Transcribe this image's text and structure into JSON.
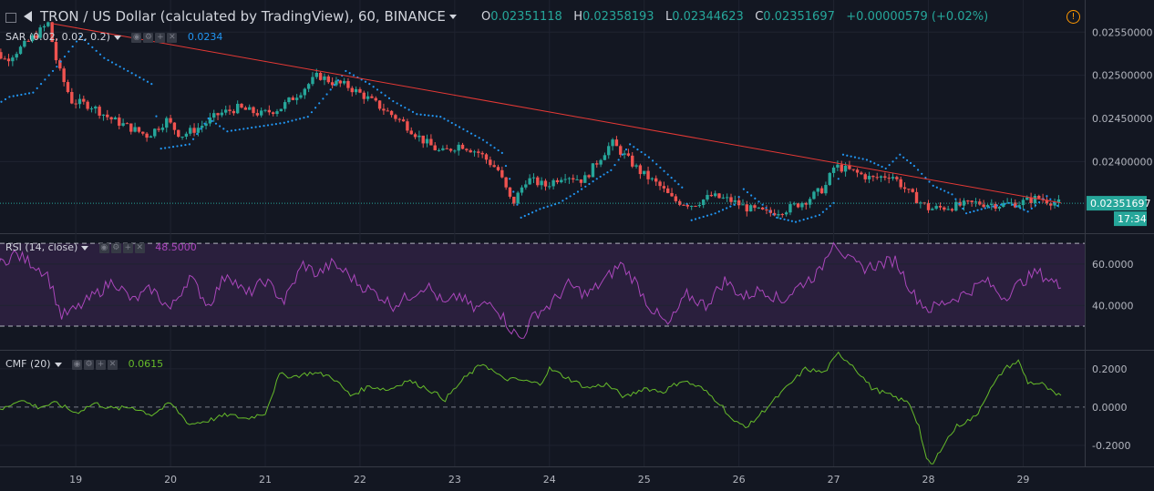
{
  "header": {
    "symbol": "TRON / US Dollar (calculated by TradingView), 60, BINANCE",
    "ohlc": [
      {
        "k": "O",
        "v": "0.02351118"
      },
      {
        "k": "H",
        "v": "0.02358193"
      },
      {
        "k": "L",
        "v": "0.02344623"
      },
      {
        "k": "C",
        "v": "0.02351697"
      }
    ],
    "change": "+0.00000579 (+0.02%)",
    "alert_icon": "alert-icon"
  },
  "indicators": {
    "sar": {
      "label": "SAR (0.02, 0.02, 0.2)",
      "value": "0.0234"
    },
    "rsi": {
      "label": "RSI (14, close)",
      "value": "48.5000"
    },
    "cmf": {
      "label": "CMF (20)",
      "value": "0.0615"
    }
  },
  "price_badge": {
    "price": "0.02351697",
    "countdown": "17:34"
  },
  "colors": {
    "up": "#26a69a",
    "down": "#ef5350",
    "sar": "#2196f3",
    "rsi": "#ab47bc",
    "cmf": "#66bb2a",
    "trend": "#e53935",
    "bg": "#131722"
  },
  "chart_data": [
    {
      "type": "candlestick",
      "title": "TRON / US Dollar (calculated by TradingView), 60, BINANCE",
      "x_ticks": [
        "19",
        "20",
        "21",
        "22",
        "23",
        "24",
        "25",
        "26",
        "27",
        "28",
        "29"
      ],
      "y_ticks": [
        "0.02550000",
        "0.02500000",
        "0.02450000",
        "0.02400000",
        "0.02351697"
      ],
      "ylim": [
        0.02318,
        0.02582
      ],
      "trendline": [
        {
          "x": 18.75,
          "y": 0.0256
        },
        {
          "x": 29.4,
          "y": 0.02352
        }
      ],
      "close_path": [
        [
          18.0,
          0.02505
        ],
        [
          18.15,
          0.0253
        ],
        [
          18.3,
          0.02518
        ],
        [
          18.5,
          0.02535
        ],
        [
          18.75,
          0.0256
        ],
        [
          18.85,
          0.0251
        ],
        [
          19.0,
          0.0247
        ],
        [
          19.2,
          0.02465
        ],
        [
          19.4,
          0.0245
        ],
        [
          19.6,
          0.0244
        ],
        [
          19.8,
          0.0243
        ],
        [
          20.0,
          0.02448
        ],
        [
          20.15,
          0.0243
        ],
        [
          20.35,
          0.0244
        ],
        [
          20.55,
          0.02455
        ],
        [
          20.75,
          0.02462
        ],
        [
          21.0,
          0.02455
        ],
        [
          21.2,
          0.02462
        ],
        [
          21.4,
          0.0248
        ],
        [
          21.6,
          0.025
        ],
        [
          21.75,
          0.02492
        ],
        [
          21.9,
          0.02488
        ],
        [
          22.1,
          0.02475
        ],
        [
          22.3,
          0.0246
        ],
        [
          22.5,
          0.02445
        ],
        [
          22.7,
          0.02425
        ],
        [
          22.9,
          0.0241
        ],
        [
          23.1,
          0.0242
        ],
        [
          23.3,
          0.0241
        ],
        [
          23.5,
          0.0239
        ],
        [
          23.65,
          0.0235
        ],
        [
          23.8,
          0.0238
        ],
        [
          24.0,
          0.02372
        ],
        [
          24.2,
          0.02385
        ],
        [
          24.4,
          0.02378
        ],
        [
          24.6,
          0.02408
        ],
        [
          24.7,
          0.02422
        ],
        [
          24.85,
          0.02405
        ],
        [
          25.0,
          0.02388
        ],
        [
          25.2,
          0.02372
        ],
        [
          25.35,
          0.02355
        ],
        [
          25.55,
          0.0235
        ],
        [
          25.75,
          0.0236
        ],
        [
          25.95,
          0.02355
        ],
        [
          26.15,
          0.02345
        ],
        [
          26.35,
          0.0234
        ],
        [
          26.55,
          0.02345
        ],
        [
          26.75,
          0.02355
        ],
        [
          26.95,
          0.0237
        ],
        [
          27.05,
          0.02395
        ],
        [
          27.25,
          0.02388
        ],
        [
          27.45,
          0.0238
        ],
        [
          27.65,
          0.02385
        ],
        [
          27.85,
          0.02362
        ],
        [
          28.05,
          0.02345
        ],
        [
          28.3,
          0.02348
        ],
        [
          28.55,
          0.02352
        ],
        [
          28.8,
          0.0235
        ],
        [
          29.0,
          0.02352
        ],
        [
          29.2,
          0.02358
        ],
        [
          29.4,
          0.02351697
        ]
      ],
      "sar_dots": [
        [
          18.0,
          0.02455
        ],
        [
          18.3,
          0.02475
        ],
        [
          18.55,
          0.0248
        ],
        [
          18.8,
          0.0251
        ],
        [
          19.05,
          0.02545
        ],
        [
          19.3,
          0.0252
        ],
        [
          19.55,
          0.02505
        ],
        [
          19.8,
          0.0249
        ],
        [
          19.9,
          0.02415
        ],
        [
          20.2,
          0.0242
        ],
        [
          20.4,
          0.0245
        ],
        [
          20.6,
          0.02435
        ],
        [
          20.9,
          0.0244
        ],
        [
          21.2,
          0.02445
        ],
        [
          21.45,
          0.02452
        ],
        [
          21.65,
          0.02478
        ],
        [
          21.85,
          0.02505
        ],
        [
          22.1,
          0.0249
        ],
        [
          22.35,
          0.0247
        ],
        [
          22.6,
          0.02455
        ],
        [
          22.85,
          0.02452
        ],
        [
          23.05,
          0.0244
        ],
        [
          23.3,
          0.02425
        ],
        [
          23.5,
          0.0241
        ],
        [
          23.7,
          0.02335
        ],
        [
          23.9,
          0.02345
        ],
        [
          24.1,
          0.02352
        ],
        [
          24.3,
          0.02365
        ],
        [
          24.5,
          0.0238
        ],
        [
          24.65,
          0.0239
        ],
        [
          24.85,
          0.0242
        ],
        [
          25.05,
          0.02405
        ],
        [
          25.25,
          0.02385
        ],
        [
          25.4,
          0.0237
        ],
        [
          25.5,
          0.02332
        ],
        [
          25.75,
          0.0234
        ],
        [
          25.95,
          0.0235
        ],
        [
          26.05,
          0.02368
        ],
        [
          26.25,
          0.0235
        ],
        [
          26.4,
          0.02335
        ],
        [
          26.6,
          0.0233
        ],
        [
          26.85,
          0.02338
        ],
        [
          27.0,
          0.02352
        ],
        [
          27.1,
          0.02408
        ],
        [
          27.35,
          0.02402
        ],
        [
          27.55,
          0.02392
        ],
        [
          27.7,
          0.02408
        ],
        [
          27.85,
          0.02395
        ],
        [
          28.05,
          0.02372
        ],
        [
          28.25,
          0.02362
        ],
        [
          28.4,
          0.0234
        ],
        [
          28.6,
          0.02346
        ],
        [
          28.85,
          0.02352
        ],
        [
          29.05,
          0.02342
        ],
        [
          29.25,
          0.0236
        ],
        [
          29.4,
          0.02345
        ]
      ]
    },
    {
      "type": "line",
      "title": "RSI (14, close)",
      "y_ticks": [
        "60.0000",
        "40.0000"
      ],
      "ylim": [
        19,
        74
      ],
      "band": [
        30,
        70
      ],
      "series": [
        {
          "name": "RSI (14, close)",
          "points": [
            [
              18.0,
              61
            ],
            [
              18.15,
              58
            ],
            [
              18.35,
              65
            ],
            [
              18.55,
              60
            ],
            [
              18.7,
              55
            ],
            [
              18.85,
              35
            ],
            [
              19.0,
              38
            ],
            [
              19.2,
              45
            ],
            [
              19.4,
              52
            ],
            [
              19.6,
              42
            ],
            [
              19.8,
              48
            ],
            [
              20.0,
              38
            ],
            [
              20.2,
              54
            ],
            [
              20.4,
              40
            ],
            [
              20.6,
              56
            ],
            [
              20.8,
              45
            ],
            [
              21.0,
              52
            ],
            [
              21.2,
              42
            ],
            [
              21.4,
              60
            ],
            [
              21.55,
              55
            ],
            [
              21.7,
              60
            ],
            [
              21.85,
              56
            ],
            [
              22.0,
              50
            ],
            [
              22.2,
              45
            ],
            [
              22.35,
              40
            ],
            [
              22.5,
              44
            ],
            [
              22.7,
              50
            ],
            [
              22.9,
              40
            ],
            [
              23.05,
              45
            ],
            [
              23.2,
              38
            ],
            [
              23.4,
              42
            ],
            [
              23.6,
              28
            ],
            [
              23.7,
              24
            ],
            [
              23.85,
              36
            ],
            [
              24.0,
              40
            ],
            [
              24.2,
              50
            ],
            [
              24.4,
              45
            ],
            [
              24.6,
              53
            ],
            [
              24.75,
              60
            ],
            [
              24.9,
              52
            ],
            [
              25.05,
              40
            ],
            [
              25.25,
              30
            ],
            [
              25.45,
              45
            ],
            [
              25.65,
              40
            ],
            [
              25.85,
              52
            ],
            [
              26.05,
              44
            ],
            [
              26.25,
              48
            ],
            [
              26.45,
              42
            ],
            [
              26.65,
              50
            ],
            [
              26.85,
              56
            ],
            [
              27.0,
              72
            ],
            [
              27.15,
              62
            ],
            [
              27.3,
              58
            ],
            [
              27.5,
              60
            ],
            [
              27.65,
              62
            ],
            [
              27.85,
              45
            ],
            [
              28.0,
              38
            ],
            [
              28.2,
              42
            ],
            [
              28.4,
              46
            ],
            [
              28.6,
              52
            ],
            [
              28.8,
              44
            ],
            [
              29.0,
              52
            ],
            [
              29.15,
              56
            ],
            [
              29.3,
              52
            ],
            [
              29.4,
              48.5
            ]
          ]
        }
      ]
    },
    {
      "type": "line",
      "title": "CMF (20)",
      "y_ticks": [
        "0.2000",
        "0.0000",
        "-0.2000"
      ],
      "ylim": [
        -0.31,
        0.29
      ],
      "series": [
        {
          "name": "CMF (20)",
          "points": [
            [
              18.0,
              0.0
            ],
            [
              18.2,
              -0.02
            ],
            [
              18.4,
              0.04
            ],
            [
              18.6,
              0.0
            ],
            [
              18.8,
              0.02
            ],
            [
              19.0,
              -0.03
            ],
            [
              19.2,
              0.02
            ],
            [
              19.4,
              -0.01
            ],
            [
              19.6,
              0.0
            ],
            [
              19.8,
              -0.04
            ],
            [
              20.0,
              0.02
            ],
            [
              20.2,
              -0.09
            ],
            [
              20.4,
              -0.07
            ],
            [
              20.6,
              -0.04
            ],
            [
              20.8,
              -0.06
            ],
            [
              21.0,
              -0.03
            ],
            [
              21.15,
              0.17
            ],
            [
              21.3,
              0.16
            ],
            [
              21.5,
              0.18
            ],
            [
              21.7,
              0.16
            ],
            [
              21.9,
              0.06
            ],
            [
              22.1,
              0.11
            ],
            [
              22.3,
              0.09
            ],
            [
              22.5,
              0.14
            ],
            [
              22.7,
              0.1
            ],
            [
              22.9,
              0.04
            ],
            [
              23.1,
              0.15
            ],
            [
              23.3,
              0.23
            ],
            [
              23.5,
              0.15
            ],
            [
              23.7,
              0.14
            ],
            [
              23.9,
              0.12
            ],
            [
              24.0,
              0.2
            ],
            [
              24.2,
              0.15
            ],
            [
              24.4,
              0.1
            ],
            [
              24.6,
              0.12
            ],
            [
              24.8,
              0.05
            ],
            [
              25.0,
              0.1
            ],
            [
              25.2,
              0.08
            ],
            [
              25.4,
              0.14
            ],
            [
              25.6,
              0.1
            ],
            [
              25.8,
              0.02
            ],
            [
              25.95,
              -0.08
            ],
            [
              26.1,
              -0.1
            ],
            [
              26.3,
              0.0
            ],
            [
              26.5,
              0.1
            ],
            [
              26.7,
              0.2
            ],
            [
              26.9,
              0.18
            ],
            [
              27.05,
              0.28
            ],
            [
              27.2,
              0.22
            ],
            [
              27.4,
              0.1
            ],
            [
              27.6,
              0.06
            ],
            [
              27.8,
              0.02
            ],
            [
              27.9,
              -0.1
            ],
            [
              27.98,
              -0.28
            ],
            [
              28.05,
              -0.3
            ],
            [
              28.15,
              -0.2
            ],
            [
              28.3,
              -0.1
            ],
            [
              28.5,
              -0.05
            ],
            [
              28.6,
              0.05
            ],
            [
              28.8,
              0.2
            ],
            [
              28.95,
              0.24
            ],
            [
              29.05,
              0.13
            ],
            [
              29.2,
              0.12
            ],
            [
              29.35,
              0.06
            ],
            [
              29.4,
              0.0615
            ]
          ]
        }
      ]
    }
  ]
}
